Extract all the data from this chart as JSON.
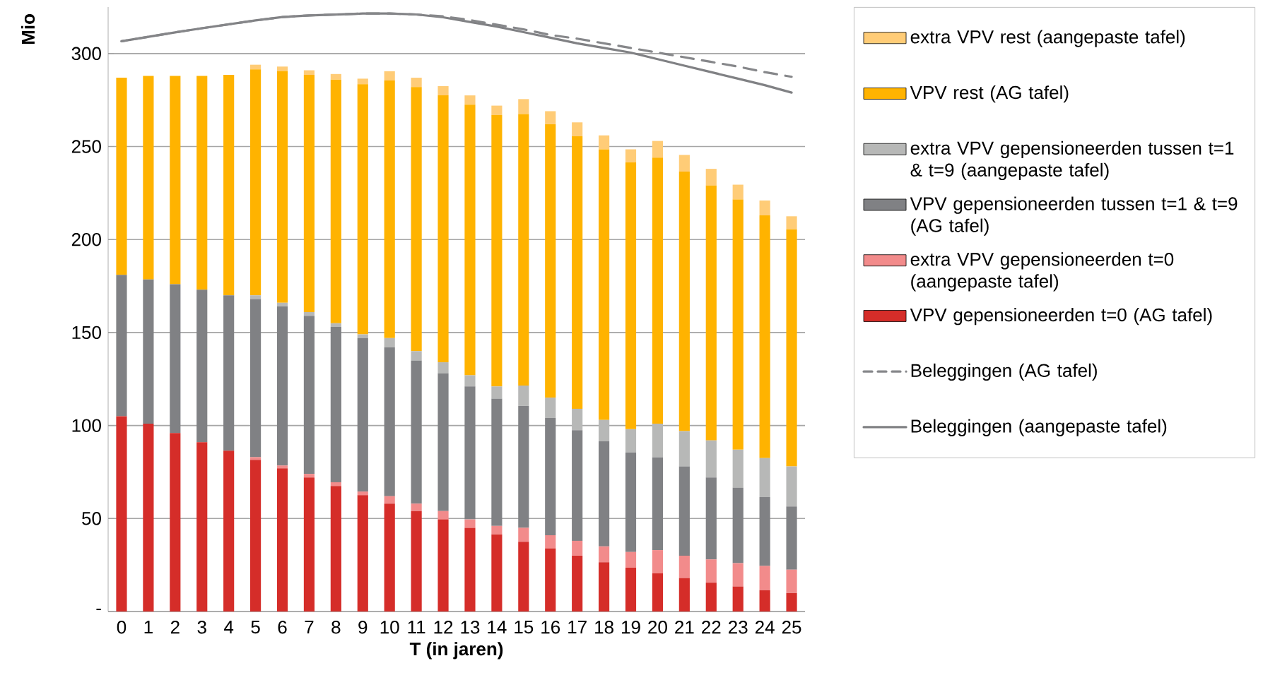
{
  "chart_data": {
    "type": "bar",
    "stacked": true,
    "xlabel": "T (in jaren)",
    "ylabel": "Mio",
    "categories": [
      "0",
      "1",
      "2",
      "3",
      "4",
      "5",
      "6",
      "7",
      "8",
      "9",
      "10",
      "11",
      "12",
      "13",
      "14",
      "15",
      "16",
      "17",
      "18",
      "19",
      "20",
      "21",
      "22",
      "23",
      "24",
      "25"
    ],
    "ylim": [
      0,
      325
    ],
    "yticks": [
      {
        "value": 0,
        "label": "-"
      },
      50,
      100,
      150,
      200,
      250,
      300
    ],
    "grid": "y",
    "legend": "right",
    "marker": "none",
    "series": [
      {
        "name": "VPV gepensioneerden t=0 (AG tafel)",
        "color": "#d52d29",
        "values": [
          105,
          101,
          96,
          91,
          86.5,
          81.5,
          77,
          72,
          67.5,
          62.5,
          58,
          54,
          49.5,
          45,
          41.5,
          37.5,
          34,
          30,
          26.5,
          23.5,
          20.5,
          18,
          15.5,
          13.5,
          11.5,
          10
        ]
      },
      {
        "name": "extra VPV gepensioneerden t=0 (aangepaste tafel)",
        "color": "#f28b8b",
        "values": [
          0,
          0,
          0,
          0,
          0,
          1.5,
          1.5,
          2,
          2,
          2,
          4,
          4,
          4.5,
          4.5,
          4.5,
          7.5,
          7,
          8,
          8.5,
          8.5,
          12.5,
          12,
          12.5,
          12.5,
          13,
          12.5
        ]
      },
      {
        "name": "VPV gepensioneerden tussen t=1 & t=9 (AG tafel)",
        "color": "#808184",
        "values": [
          76,
          77.5,
          80,
          82,
          83.5,
          85,
          85.5,
          85,
          83.5,
          82.5,
          80,
          77,
          74,
          71.5,
          68.5,
          65.5,
          63,
          59.5,
          56.5,
          53.5,
          50,
          48,
          44,
          40.5,
          37,
          34
        ]
      },
      {
        "name": "extra VPV gepensioneerden tussen t=1 & t=9 (aangepaste tafel)",
        "color": "#b7b8b7",
        "values": [
          0,
          0,
          0,
          0,
          0,
          2,
          2,
          2,
          2,
          2,
          5,
          5,
          6,
          6,
          6.5,
          11,
          11,
          11.5,
          11.5,
          12.5,
          18,
          19,
          20,
          20.5,
          21,
          21.5
        ]
      },
      {
        "name": "VPV rest (AG tafel)",
        "color": "#ffb300",
        "values": [
          106,
          109.5,
          112,
          115,
          118.5,
          121.5,
          124.5,
          127.5,
          131,
          134.5,
          138.5,
          142,
          143.5,
          145.5,
          146,
          146,
          147,
          146.5,
          145.5,
          143.5,
          143,
          139.5,
          137,
          134.5,
          130.5,
          127.5
        ]
      },
      {
        "name": "extra VPV rest (aangepaste tafel)",
        "color": "#ffcc77",
        "values": [
          0,
          0,
          0,
          0,
          0,
          2.5,
          2.5,
          2.5,
          3,
          3,
          5,
          5,
          5,
          5,
          5,
          8,
          7,
          7.5,
          7.5,
          7,
          9,
          9,
          9,
          8,
          8,
          7
        ]
      },
      {
        "name": "Beleggingen (AG tafel)",
        "type": "line",
        "line_style": "dashed",
        "color": "#86878a",
        "values": [
          306.6,
          309,
          311.4,
          313.6,
          315.7,
          317.8,
          319.6,
          320.5,
          321,
          321.5,
          321.5,
          321,
          320,
          318,
          315.5,
          313,
          310,
          308,
          305.5,
          303,
          300.5,
          298,
          295.5,
          293,
          290,
          287.5
        ]
      },
      {
        "name": "Beleggingen (aangepaste tafel)",
        "type": "line",
        "line_style": "solid",
        "color": "#808184",
        "values": [
          306.6,
          309,
          311.4,
          313.6,
          315.7,
          317.8,
          319.6,
          320.5,
          321,
          321.5,
          321.5,
          321,
          319.5,
          317,
          314.5,
          311.5,
          308.5,
          305.5,
          303,
          300.5,
          297,
          293.5,
          290,
          286.5,
          283,
          279
        ]
      }
    ]
  }
}
